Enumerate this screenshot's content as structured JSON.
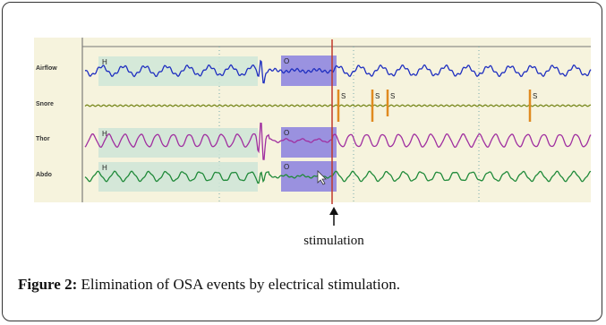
{
  "figure": {
    "channels": [
      "Airflow",
      "Snore",
      "Thor",
      "Abdo"
    ],
    "event_labels": {
      "hypopnea": "H",
      "obstructive": "O",
      "snore": "S"
    },
    "annotation": "stimulation",
    "caption": {
      "label": "Figure 2:",
      "text": "Elimination of OSA events by electrical stimulation."
    }
  }
}
